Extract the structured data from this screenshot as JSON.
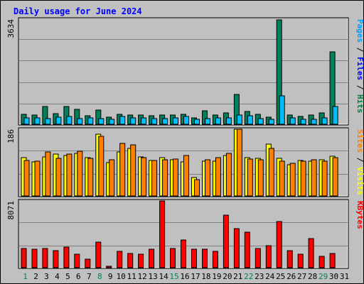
{
  "chart_data": {
    "type": "bar",
    "title": "Daily usage for June 2024",
    "days": [
      "1",
      "2",
      "3",
      "4",
      "5",
      "6",
      "7",
      "8",
      "9",
      "10",
      "11",
      "12",
      "13",
      "14",
      "15",
      "16",
      "17",
      "18",
      "19",
      "20",
      "21",
      "22",
      "23",
      "24",
      "25",
      "26",
      "27",
      "28",
      "29",
      "30",
      "31"
    ],
    "weekend_days": [
      1,
      8,
      15,
      22,
      29
    ],
    "weekend_days_color": "#00805c",
    "panels": [
      {
        "id": "hits-files-pages",
        "ymax": 3634,
        "ymax_label": "3634",
        "right_labels": [
          {
            "text": "Pages",
            "color": "#00a0ff"
          },
          {
            "text": " / ",
            "color": "#000000"
          },
          {
            "text": "Files",
            "color": "#0000ff"
          },
          {
            "text": " / ",
            "color": "#000000"
          },
          {
            "text": "Hits",
            "color": "#008040"
          }
        ],
        "series": [
          {
            "name": "Hits",
            "color": "#00805c",
            "values": [
              340,
              320,
              620,
              360,
              600,
              510,
              300,
              490,
              250,
              330,
              310,
              310,
              300,
              320,
              320,
              330,
              210,
              470,
              310,
              390,
              1020,
              430,
              330,
              250,
              3590,
              310,
              270,
              310,
              400,
              2480,
              0
            ]
          },
          {
            "name": "Pages",
            "color": "#00bfff",
            "values": [
              230,
              210,
              200,
              240,
              280,
              200,
              220,
              200,
              180,
              260,
              230,
              230,
              200,
              190,
              220,
              270,
              170,
              190,
              230,
              210,
              320,
              300,
              190,
              170,
              980,
              220,
              160,
              180,
              210,
              620,
              0
            ]
          }
        ]
      },
      {
        "id": "visits-sites",
        "ymax": 186,
        "ymax_label": "186",
        "right_labels": [
          {
            "text": "Sites",
            "color": "#ff8000"
          },
          {
            "text": " / ",
            "color": "#000000"
          },
          {
            "text": "Visits",
            "color": "#ffff00"
          }
        ],
        "series": [
          {
            "name": "Visits",
            "color": "#ffff00",
            "values": [
              106,
              93,
              108,
              115,
              112,
              118,
              106,
              171,
              92,
              122,
              132,
              108,
              98,
              106,
              99,
              93,
              50,
              96,
              96,
              112,
              185,
              106,
              103,
              142,
              103,
              86,
              98,
              96,
              99,
              109,
              0
            ]
          },
          {
            "name": "Sites",
            "color": "#ff8000",
            "values": [
              98,
              95,
              121,
              103,
              115,
              124,
              104,
              165,
              100,
              144,
              141,
              105,
              98,
              100,
              102,
              111,
              45,
              100,
              106,
              117,
              184,
              102,
              100,
              131,
              95,
              91,
              95,
              99,
              96,
              106,
              0
            ]
          }
        ]
      },
      {
        "id": "kbytes",
        "ymax": 8071,
        "ymax_label": "8071",
        "right_labels": [
          {
            "text": "KBytes",
            "color": "#ff0000"
          }
        ],
        "series": [
          {
            "name": "KBytes",
            "color": "#ff0000",
            "values": [
              2270,
              2240,
              2330,
              2060,
              2440,
              1620,
              1050,
              3060,
              180,
              1920,
              1730,
              1580,
              2240,
              8010,
              2290,
              3350,
              2250,
              2190,
              1950,
              6300,
              4690,
              4280,
              2260,
              2670,
              5490,
              2060,
              1580,
              3450,
              1330,
              1680,
              0
            ]
          }
        ]
      }
    ],
    "colors": {
      "background": "#c0c0c0",
      "plot_background": "#c0c0c0",
      "gridline": "#808080",
      "title": "#0000ff",
      "axis_text": "#000000",
      "bar_outline": "#000000"
    },
    "grid": true
  }
}
